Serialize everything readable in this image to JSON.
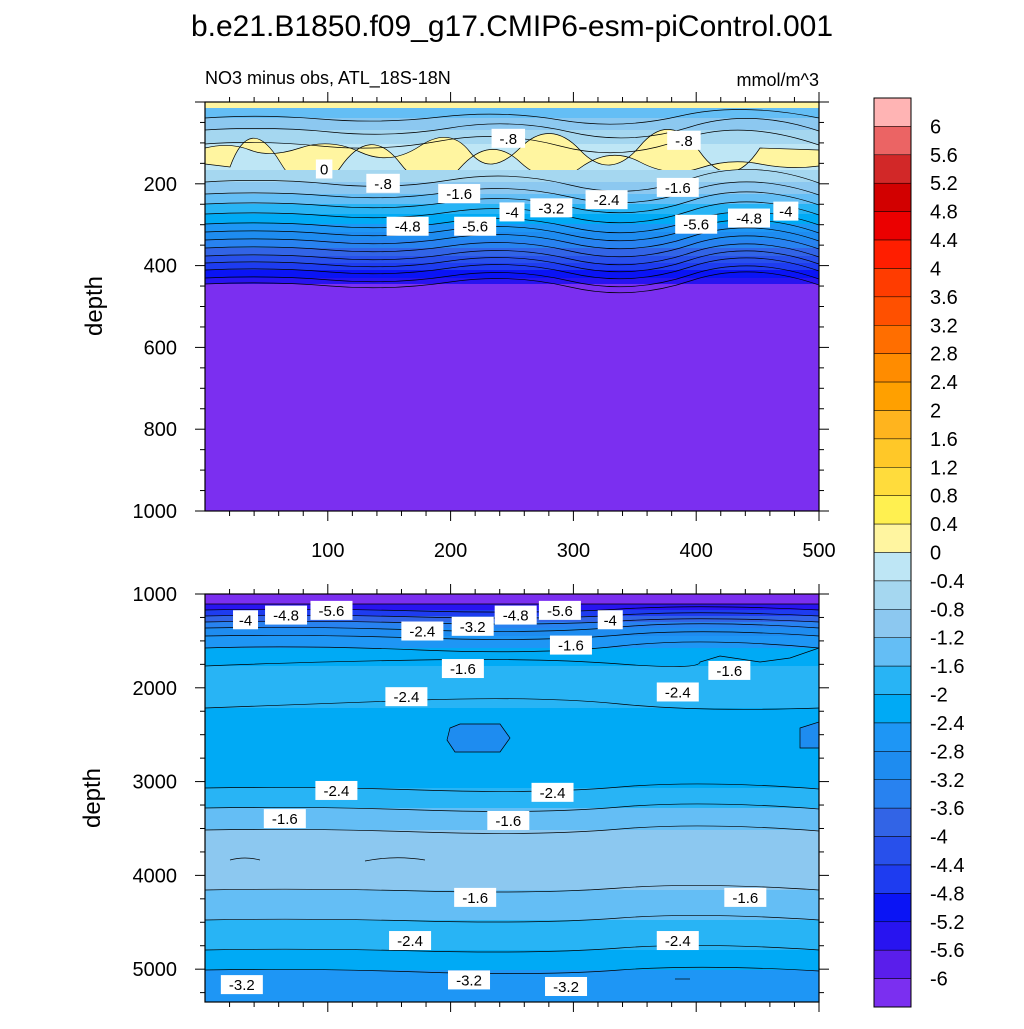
{
  "title": "b.e21.B1850.f09_g17.CMIP6-esm-piControl.001",
  "colors": {
    "deep_violet": "#7b2ff0",
    "ocean_blue": "#1e90ff",
    "light_yellow": "#fff5a0",
    "line": "#000000"
  },
  "chart_data": [
    {
      "type": "contour",
      "panel": "upper",
      "subtitle_left": "NO3 minus obs, ATL_18S-18N",
      "subtitle_right": "mmol/m^3",
      "ylabel": "depth",
      "xlabel": "",
      "xlim": [
        0,
        500
      ],
      "ylim": [
        1000,
        0
      ],
      "x_ticks": [
        100,
        200,
        300,
        400,
        500
      ],
      "y_ticks": [
        200,
        400,
        600,
        800,
        1000
      ],
      "contour_labels": [
        {
          "text": "-.8",
          "x": 247,
          "y": 90
        },
        {
          "text": "-.8",
          "x": 390,
          "y": 95
        },
        {
          "text": "0",
          "x": 97,
          "y": 165
        },
        {
          "text": "-.8",
          "x": 145,
          "y": 200
        },
        {
          "text": "-1.6",
          "x": 207,
          "y": 225
        },
        {
          "text": "-1.6",
          "x": 385,
          "y": 210
        },
        {
          "text": "-2.4",
          "x": 327,
          "y": 240
        },
        {
          "text": "-3.2",
          "x": 282,
          "y": 260
        },
        {
          "text": "-4",
          "x": 250,
          "y": 270
        },
        {
          "text": "-4",
          "x": 473,
          "y": 268
        },
        {
          "text": "-4.8",
          "x": 165,
          "y": 305
        },
        {
          "text": "-4.8",
          "x": 443,
          "y": 285
        },
        {
          "text": "-5.6",
          "x": 220,
          "y": 305
        },
        {
          "text": "-5.6",
          "x": 400,
          "y": 300
        }
      ]
    },
    {
      "type": "contour",
      "panel": "lower",
      "ylabel": "depth",
      "xlabel": "",
      "xlim": [
        0,
        500
      ],
      "ylim": [
        5350,
        1000
      ],
      "x_ticks": [
        100,
        200,
        300,
        400,
        500
      ],
      "y_ticks": [
        1000,
        2000,
        3000,
        4000,
        5000
      ],
      "contour_labels": [
        {
          "text": "-4",
          "x": 33,
          "y": 1280
        },
        {
          "text": "-4.8",
          "x": 66,
          "y": 1230
        },
        {
          "text": "-5.6",
          "x": 103,
          "y": 1180
        },
        {
          "text": "-2.4",
          "x": 177,
          "y": 1400
        },
        {
          "text": "-3.2",
          "x": 218,
          "y": 1350
        },
        {
          "text": "-4.8",
          "x": 253,
          "y": 1230
        },
        {
          "text": "-5.6",
          "x": 289,
          "y": 1180
        },
        {
          "text": "-4",
          "x": 330,
          "y": 1280
        },
        {
          "text": "-1.6",
          "x": 298,
          "y": 1550
        },
        {
          "text": "-1.6",
          "x": 210,
          "y": 1800
        },
        {
          "text": "-1.6",
          "x": 427,
          "y": 1820
        },
        {
          "text": "-2.4",
          "x": 164,
          "y": 2100
        },
        {
          "text": "-2.4",
          "x": 385,
          "y": 2050
        },
        {
          "text": "-2.4",
          "x": 107,
          "y": 3100
        },
        {
          "text": "-2.4",
          "x": 283,
          "y": 3120
        },
        {
          "text": "-1.6",
          "x": 65,
          "y": 3400
        },
        {
          "text": "-1.6",
          "x": 247,
          "y": 3420
        },
        {
          "text": "-1.6",
          "x": 220,
          "y": 4240
        },
        {
          "text": "-1.6",
          "x": 440,
          "y": 4240
        },
        {
          "text": "-2.4",
          "x": 167,
          "y": 4700
        },
        {
          "text": "-2.4",
          "x": 385,
          "y": 4700
        },
        {
          "text": "-3.2",
          "x": 30,
          "y": 5170
        },
        {
          "text": "-3.2",
          "x": 215,
          "y": 5120
        },
        {
          "text": "-3.2",
          "x": 294,
          "y": 5190
        }
      ]
    }
  ],
  "colorbar": {
    "levels": [
      "6",
      "5.6",
      "5.2",
      "4.8",
      "4.4",
      "4",
      "3.6",
      "3.2",
      "2.8",
      "2.4",
      "2",
      "1.6",
      "1.2",
      "0.8",
      "0.4",
      "0",
      "-0.4",
      "-0.8",
      "-1.2",
      "-1.6",
      "-2",
      "-2.4",
      "-2.8",
      "-3.2",
      "-3.6",
      "-4",
      "-4.4",
      "-4.8",
      "-5.2",
      "-5.6",
      "-6"
    ],
    "colors": [
      "#ffb4b4",
      "#eb6464",
      "#d22828",
      "#d20000",
      "#eb0000",
      "#ff1e00",
      "#ff3c00",
      "#ff5000",
      "#ff6e00",
      "#ff8c00",
      "#ffa000",
      "#ffb41e",
      "#ffc828",
      "#ffdc3c",
      "#fff050",
      "#fff5a0",
      "#bee6f5",
      "#a5d7f0",
      "#8cc8f0",
      "#64bef5",
      "#28b4f5",
      "#00aaf5",
      "#1e96f5",
      "#1e8cf0",
      "#2882f0",
      "#3264e6",
      "#2850eb",
      "#1e3cf0",
      "#0a14f5",
      "#2814f0",
      "#5a1eeb",
      "#7b2ff0"
    ]
  }
}
